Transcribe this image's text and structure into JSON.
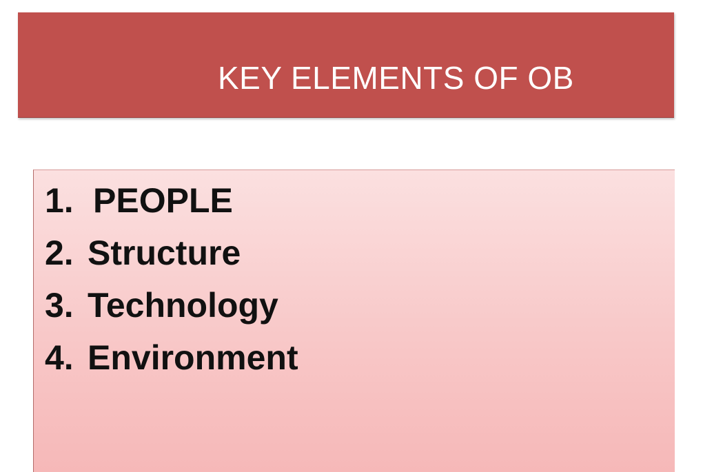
{
  "slide": {
    "title": "KEY ELEMENTS OF OB",
    "items": [
      {
        "number": "1.",
        "label": "PEOPLE"
      },
      {
        "number": "2.",
        "label": "Structure"
      },
      {
        "number": "3.",
        "label": "Technology"
      },
      {
        "number": "4.",
        "label": "Environment"
      }
    ]
  },
  "colors": {
    "title_banner": "#c0504d",
    "title_text": "#ffffff",
    "content_box_top": "#fbe0e0",
    "content_box_bottom": "#f6b8b8",
    "list_text": "#111111"
  }
}
